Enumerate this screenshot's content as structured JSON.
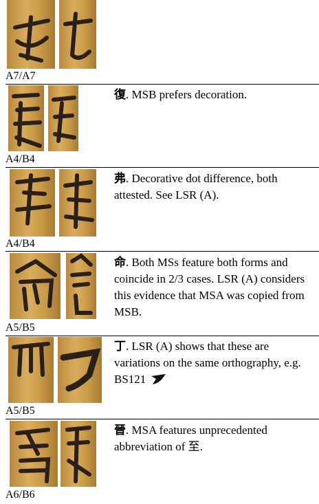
{
  "rows": [
    {
      "label": "A7/A7"
    },
    {
      "label": "A4/B4",
      "character": "復",
      "text": ". MSB prefers decoration."
    },
    {
      "label": "A4/B4",
      "character": "弗",
      "text": ". Decorative dot difference, both attested. See LSR (A)."
    },
    {
      "label": "A5/B5",
      "character": "命",
      "text": ". Both MSs feature both forms and coincide in 2/3 cases. LSR (A) considers this evidence that MSA was copied from MSB."
    },
    {
      "label": "A5/B5",
      "character": "丁",
      "text": ". LSR (A) shows  that these are variations on the same orthography, e.g. BS121"
    },
    {
      "label": "A6/B6",
      "character": "晉",
      "text": ". MSA features unprecedented abbreviation of 至."
    }
  ]
}
